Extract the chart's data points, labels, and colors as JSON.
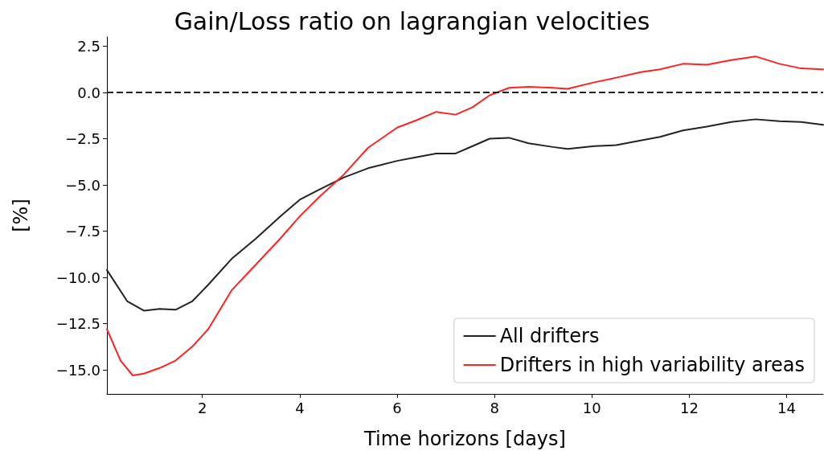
{
  "chart_data": {
    "type": "line",
    "title": "Gain/Loss ratio on lagrangian velocities",
    "xlabel": "Time horizons [days]",
    "ylabel": "[%]",
    "xlim": [
      0.04,
      14.75
    ],
    "xticks": [
      2,
      4,
      6,
      8,
      10,
      12,
      14
    ],
    "ylim": [
      -16.3,
      3.0
    ],
    "yticks": [
      {
        "value": -15,
        "label": "−15.0"
      },
      {
        "value": -12.5,
        "label": "−12.5"
      },
      {
        "value": -10,
        "label": "−10.0"
      },
      {
        "value": -7.5,
        "label": "−7.5"
      },
      {
        "value": -5,
        "label": "−5.0"
      },
      {
        "value": -2.5,
        "label": "−2.5"
      },
      {
        "value": 0,
        "label": "0.0"
      },
      {
        "value": 2.5,
        "label": "2.5"
      }
    ],
    "grid": false,
    "legend": "bottom right",
    "marker": "none",
    "line_style": "solid",
    "ref_lines": [
      {
        "axis": "y",
        "value": 0,
        "color": "#222222",
        "line_style": "dashed"
      }
    ],
    "series": [
      {
        "name": "All drifters",
        "color": "#222222",
        "x": [
          0.04,
          0.46,
          0.8,
          1.12,
          1.45,
          1.79,
          2.12,
          2.6,
          3.1,
          3.6,
          4.0,
          4.4,
          4.9,
          5.4,
          6.0,
          6.4,
          6.8,
          7.2,
          7.55,
          7.9,
          8.3,
          8.7,
          9.2,
          9.5,
          10.05,
          10.5,
          11.0,
          11.4,
          11.87,
          12.36,
          12.86,
          13.36,
          13.85,
          14.3,
          14.75
        ],
        "values": [
          -9.6,
          -11.3,
          -11.8,
          -11.7,
          -11.75,
          -11.3,
          -10.4,
          -9.0,
          -7.9,
          -6.7,
          -5.8,
          -5.25,
          -4.6,
          -4.1,
          -3.7,
          -3.5,
          -3.3,
          -3.3,
          -2.9,
          -2.5,
          -2.45,
          -2.75,
          -2.95,
          -3.05,
          -2.9,
          -2.85,
          -2.6,
          -2.4,
          -2.05,
          -1.85,
          -1.6,
          -1.45,
          -1.55,
          -1.6,
          -1.75
        ]
      },
      {
        "name": "Drifters in high variability areas",
        "color": "#ff2222",
        "x": [
          0.04,
          0.32,
          0.57,
          0.8,
          1.12,
          1.45,
          1.79,
          2.12,
          2.6,
          3.1,
          3.6,
          4.0,
          4.4,
          4.9,
          5.4,
          6.0,
          6.4,
          6.8,
          7.2,
          7.55,
          7.9,
          8.3,
          8.7,
          9.2,
          9.5,
          10.05,
          10.5,
          11.0,
          11.4,
          11.87,
          12.36,
          12.86,
          13.36,
          13.85,
          14.3,
          14.75
        ],
        "values": [
          -12.8,
          -14.5,
          -15.3,
          -15.2,
          -14.9,
          -14.5,
          -13.75,
          -12.8,
          -10.7,
          -9.3,
          -7.9,
          -6.7,
          -5.65,
          -4.45,
          -3.0,
          -1.9,
          -1.5,
          -1.05,
          -1.2,
          -0.8,
          -0.15,
          0.25,
          0.3,
          0.25,
          0.2,
          0.55,
          0.8,
          1.1,
          1.25,
          1.55,
          1.5,
          1.75,
          1.95,
          1.55,
          1.3,
          1.25
        ]
      }
    ]
  }
}
